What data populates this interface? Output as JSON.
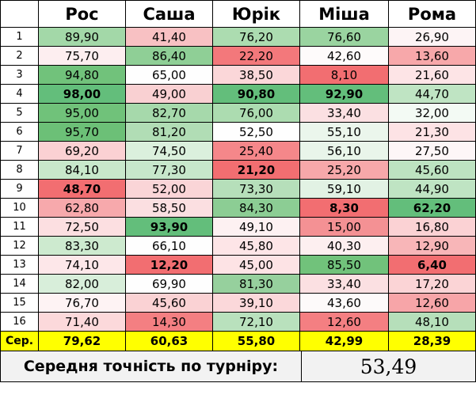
{
  "headers": [
    "Рос",
    "Саша",
    "Юрік",
    "Міша",
    "Рома"
  ],
  "rows": [
    {
      "n": "1",
      "cells": [
        {
          "v": "89,90",
          "bg": "#a3d8a8"
        },
        {
          "v": "41,40",
          "bg": "#f8c1c3"
        },
        {
          "v": "76,20",
          "bg": "#acdcb0"
        },
        {
          "v": "76,60",
          "bg": "#9ad4a0"
        },
        {
          "v": "26,90",
          "bg": "#fdf4f5"
        }
      ]
    },
    {
      "n": "2",
      "cells": [
        {
          "v": "75,70",
          "bg": "#fdeef0"
        },
        {
          "v": "86,40",
          "bg": "#8fcf96"
        },
        {
          "v": "22,20",
          "bg": "#f3787b"
        },
        {
          "v": "42,60",
          "bg": "#fefbfb"
        },
        {
          "v": "13,60",
          "bg": "#f7a8aa"
        }
      ]
    },
    {
      "n": "3",
      "cells": [
        {
          "v": "94,80",
          "bg": "#71c27b"
        },
        {
          "v": "65,00",
          "bg": "#fefefe"
        },
        {
          "v": "38,50",
          "bg": "#fbd7d9"
        },
        {
          "v": "8,10",
          "bg": "#f26e71"
        },
        {
          "v": "21,60",
          "bg": "#fde4e6"
        }
      ]
    },
    {
      "n": "4",
      "cells": [
        {
          "v": "98,00",
          "bg": "#63be7b",
          "b": true
        },
        {
          "v": "49,00",
          "bg": "#f9d0d2"
        },
        {
          "v": "90,80",
          "bg": "#63be7b",
          "b": true
        },
        {
          "v": "92,90",
          "bg": "#63be7b",
          "b": true
        },
        {
          "v": "44,70",
          "bg": "#bfe4c3"
        }
      ]
    },
    {
      "n": "5",
      "cells": [
        {
          "v": "95,00",
          "bg": "#70c27a"
        },
        {
          "v": "82,70",
          "bg": "#a6d9ab"
        },
        {
          "v": "76,00",
          "bg": "#acdcb0"
        },
        {
          "v": "33,40",
          "bg": "#fbe0e2"
        },
        {
          "v": "32,00",
          "bg": "#f3faf4"
        }
      ]
    },
    {
      "n": "6",
      "cells": [
        {
          "v": "95,70",
          "bg": "#6cc077"
        },
        {
          "v": "81,20",
          "bg": "#b1ddb5"
        },
        {
          "v": "52,50",
          "bg": "#fefefe"
        },
        {
          "v": "55,10",
          "bg": "#ebf6ec"
        },
        {
          "v": "21,30",
          "bg": "#fde3e5"
        }
      ]
    },
    {
      "n": "7",
      "cells": [
        {
          "v": "69,20",
          "bg": "#fbd1d3"
        },
        {
          "v": "74,50",
          "bg": "#dbf0dd"
        },
        {
          "v": "25,40",
          "bg": "#f5878a"
        },
        {
          "v": "56,10",
          "bg": "#e9f5ea"
        },
        {
          "v": "27,50",
          "bg": "#fdf6f7"
        }
      ]
    },
    {
      "n": "8",
      "cells": [
        {
          "v": "84,10",
          "bg": "#c8e8cb"
        },
        {
          "v": "77,30",
          "bg": "#c7e7cb"
        },
        {
          "v": "21,20",
          "bg": "#f26e71",
          "b": true
        },
        {
          "v": "25,20",
          "bg": "#f7a8aa"
        },
        {
          "v": "45,60",
          "bg": "#bde3c1"
        }
      ]
    },
    {
      "n": "9",
      "cells": [
        {
          "v": "48,70",
          "bg": "#f26e71",
          "b": true
        },
        {
          "v": "52,00",
          "bg": "#fad5d7"
        },
        {
          "v": "73,30",
          "bg": "#b6dfba"
        },
        {
          "v": "59,10",
          "bg": "#e2f2e4"
        },
        {
          "v": "44,90",
          "bg": "#bfe4c3"
        }
      ]
    },
    {
      "n": "10",
      "cells": [
        {
          "v": "62,80",
          "bg": "#f7a9ac"
        },
        {
          "v": "58,50",
          "bg": "#fbdfe1"
        },
        {
          "v": "84,30",
          "bg": "#8ccd94"
        },
        {
          "v": "8,30",
          "bg": "#f26e71",
          "b": true
        },
        {
          "v": "62,20",
          "bg": "#63be7b",
          "b": true
        }
      ]
    },
    {
      "n": "11",
      "cells": [
        {
          "v": "72,50",
          "bg": "#fcdfe1"
        },
        {
          "v": "93,90",
          "bg": "#63be7b",
          "b": true
        },
        {
          "v": "49,10",
          "bg": "#fdf1f2"
        },
        {
          "v": "15,00",
          "bg": "#f49194"
        },
        {
          "v": "16,80",
          "bg": "#fbd2d4"
        }
      ]
    },
    {
      "n": "12",
      "cells": [
        {
          "v": "83,30",
          "bg": "#cdeacf"
        },
        {
          "v": "66,10",
          "bg": "#fefefe"
        },
        {
          "v": "45,80",
          "bg": "#fde5e7"
        },
        {
          "v": "40,30",
          "bg": "#fdeff0"
        },
        {
          "v": "12,90",
          "bg": "#f8b6b8"
        }
      ]
    },
    {
      "n": "13",
      "cells": [
        {
          "v": "74,10",
          "bg": "#fde7e9"
        },
        {
          "v": "12,20",
          "bg": "#f26e71",
          "b": true
        },
        {
          "v": "45,00",
          "bg": "#fde3e5"
        },
        {
          "v": "85,50",
          "bg": "#71c27b"
        },
        {
          "v": "6,40",
          "bg": "#f26e71",
          "b": true
        }
      ]
    },
    {
      "n": "14",
      "cells": [
        {
          "v": "82,00",
          "bg": "#d8eeda"
        },
        {
          "v": "69,90",
          "bg": "#fefefe"
        },
        {
          "v": "81,30",
          "bg": "#96d09d"
        },
        {
          "v": "33,40",
          "bg": "#fbe0e2"
        },
        {
          "v": "17,20",
          "bg": "#fbd4d6"
        }
      ]
    },
    {
      "n": "15",
      "cells": [
        {
          "v": "76,70",
          "bg": "#fef3f4"
        },
        {
          "v": "45,60",
          "bg": "#fad2d4"
        },
        {
          "v": "39,10",
          "bg": "#fbd8da"
        },
        {
          "v": "43,60",
          "bg": "#fdfafa"
        },
        {
          "v": "12,60",
          "bg": "#f7a5a8"
        }
      ]
    },
    {
      "n": "16",
      "cells": [
        {
          "v": "71,40",
          "bg": "#fcd9db"
        },
        {
          "v": "14,30",
          "bg": "#f47f82"
        },
        {
          "v": "72,10",
          "bg": "#b9e1bd"
        },
        {
          "v": "12,60",
          "bg": "#f47f82"
        },
        {
          "v": "48,10",
          "bg": "#b6dfba"
        }
      ]
    }
  ],
  "average": {
    "label": "Сер.",
    "values": [
      "79,62",
      "60,63",
      "55,80",
      "42,99",
      "28,39"
    ]
  },
  "footer": {
    "label": "Середня точність по турніру:",
    "value": "53,49"
  }
}
